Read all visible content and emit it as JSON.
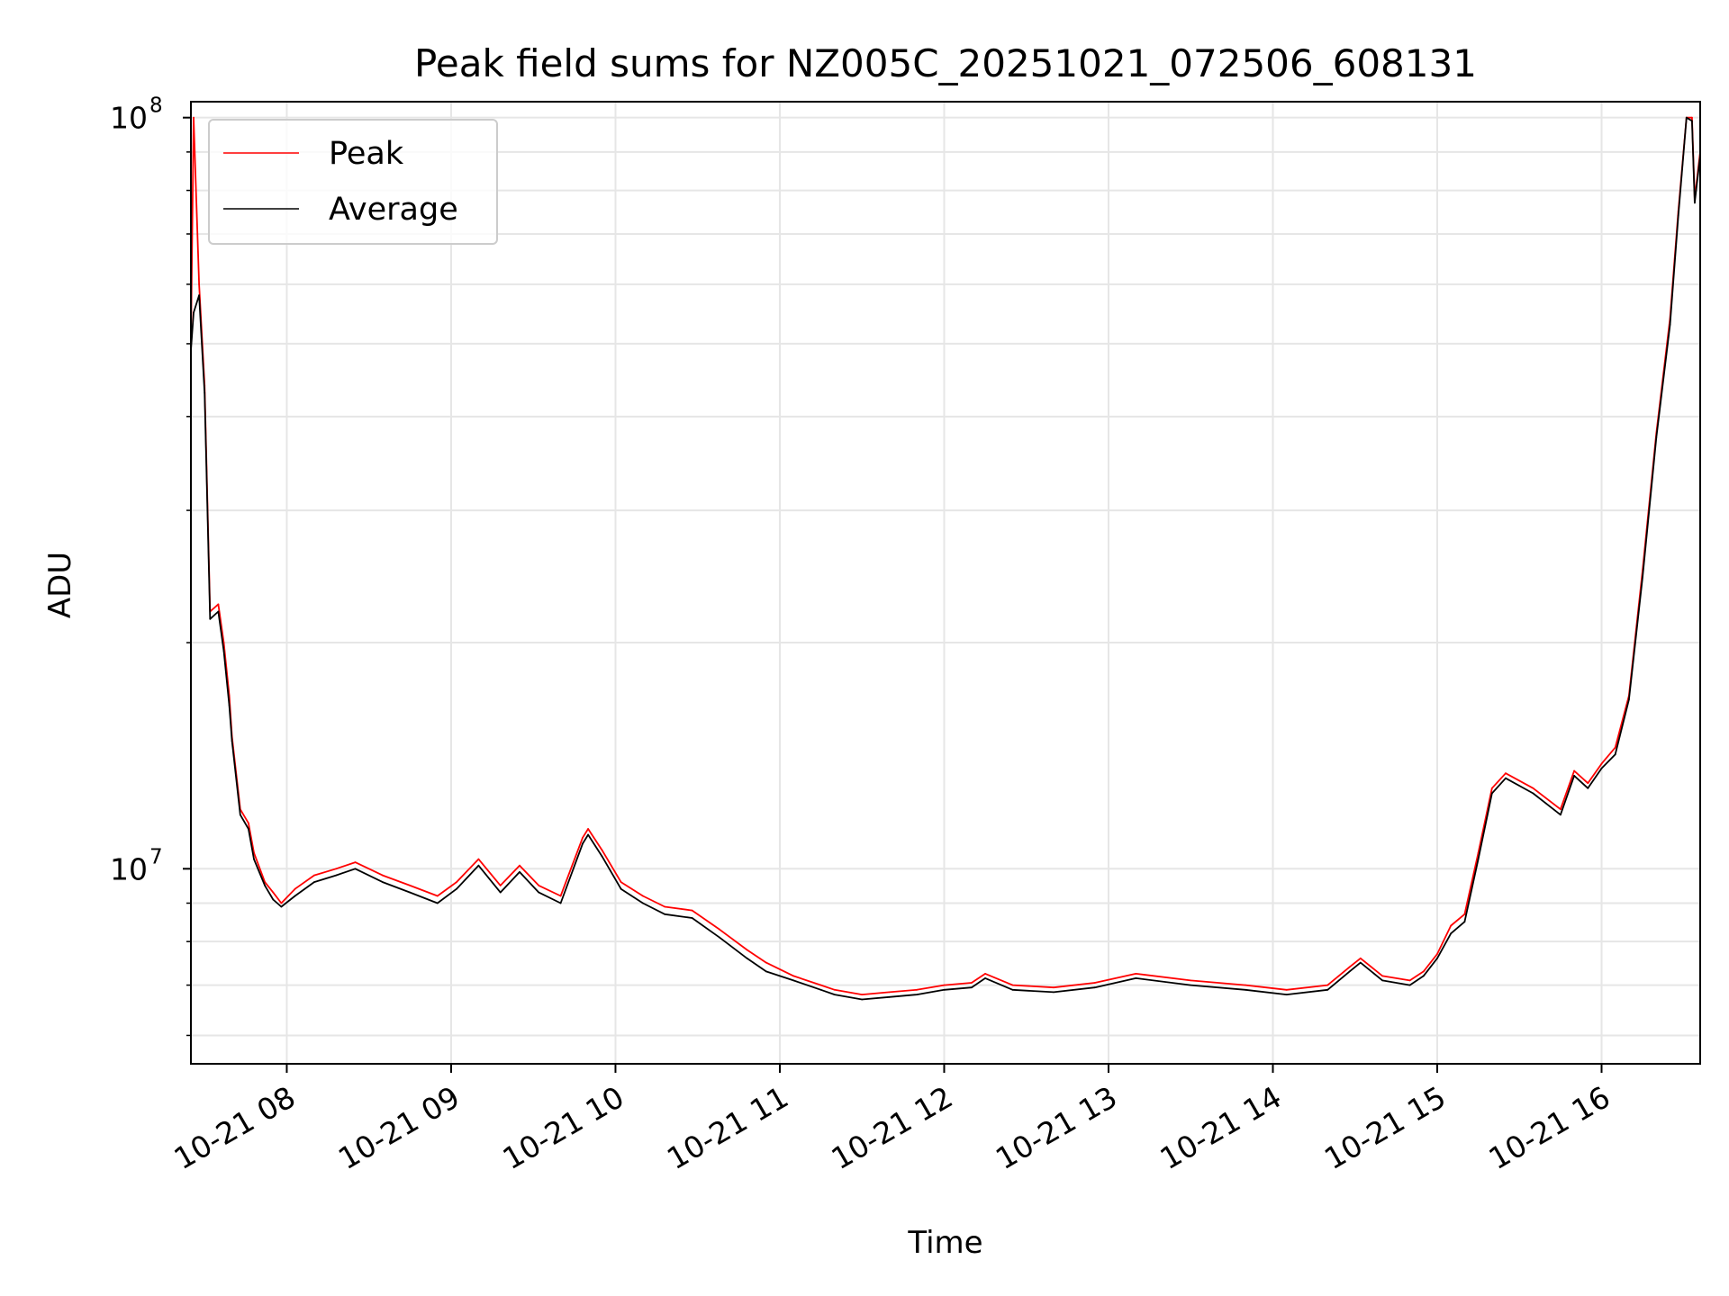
{
  "chart_data": {
    "type": "line",
    "title": "Peak field sums for NZ005C_20251021_072506_608131",
    "xlabel": "Time",
    "ylabel": "ADU",
    "y_scale": "log",
    "grid": true,
    "legend_placement": "top-left",
    "xlim": [
      "2025-10-21 07:25",
      "2025-10-21 16:36"
    ],
    "ylim": [
      5500000,
      105000000
    ],
    "x_ticks": [
      "10-21 08",
      "10-21 09",
      "10-21 10",
      "10-21 11",
      "10-21 12",
      "10-21 13",
      "10-21 14",
      "10-21 15",
      "10-21 16"
    ],
    "x_tick_times": [
      "2025-10-21 08:00",
      "2025-10-21 09:00",
      "2025-10-21 10:00",
      "2025-10-21 11:00",
      "2025-10-21 12:00",
      "2025-10-21 13:00",
      "2025-10-21 14:00",
      "2025-10-21 15:00",
      "2025-10-21 16:00"
    ],
    "y_major_ticks": [
      {
        "value": 10000000,
        "base": "10",
        "exp": "7"
      },
      {
        "value": 100000000,
        "base": "10",
        "exp": "8"
      }
    ],
    "y_minor_ticks": [
      6000000,
      7000000,
      8000000,
      9000000,
      20000000,
      30000000,
      40000000,
      50000000,
      60000000,
      70000000,
      80000000,
      90000000
    ],
    "series": [
      {
        "name": "Peak",
        "color": "#ff0000",
        "x": [
          "2025-10-21 07:25",
          "2025-10-21 07:26",
          "2025-10-21 07:28",
          "2025-10-21 07:30",
          "2025-10-21 07:32",
          "2025-10-21 07:35",
          "2025-10-21 07:37",
          "2025-10-21 07:39",
          "2025-10-21 07:40",
          "2025-10-21 07:43",
          "2025-10-21 07:46",
          "2025-10-21 07:48",
          "2025-10-21 07:52",
          "2025-10-21 07:55",
          "2025-10-21 07:58",
          "2025-10-21 08:03",
          "2025-10-21 08:10",
          "2025-10-21 08:18",
          "2025-10-21 08:25",
          "2025-10-21 08:35",
          "2025-10-21 08:45",
          "2025-10-21 08:55",
          "2025-10-21 09:02",
          "2025-10-21 09:10",
          "2025-10-21 09:18",
          "2025-10-21 09:25",
          "2025-10-21 09:32",
          "2025-10-21 09:40",
          "2025-10-21 09:48",
          "2025-10-21 09:50",
          "2025-10-21 09:55",
          "2025-10-21 10:02",
          "2025-10-21 10:10",
          "2025-10-21 10:18",
          "2025-10-21 10:28",
          "2025-10-21 10:38",
          "2025-10-21 10:48",
          "2025-10-21 10:55",
          "2025-10-21 11:05",
          "2025-10-21 11:15",
          "2025-10-21 11:20",
          "2025-10-21 11:30",
          "2025-10-21 11:40",
          "2025-10-21 11:50",
          "2025-10-21 12:00",
          "2025-10-21 12:10",
          "2025-10-21 12:15",
          "2025-10-21 12:25",
          "2025-10-21 12:40",
          "2025-10-21 12:55",
          "2025-10-21 13:10",
          "2025-10-21 13:30",
          "2025-10-21 13:50",
          "2025-10-21 14:05",
          "2025-10-21 14:20",
          "2025-10-21 14:28",
          "2025-10-21 14:32",
          "2025-10-21 14:40",
          "2025-10-21 14:50",
          "2025-10-21 14:55",
          "2025-10-21 15:00",
          "2025-10-21 15:05",
          "2025-10-21 15:10",
          "2025-10-21 15:15",
          "2025-10-21 15:20",
          "2025-10-21 15:25",
          "2025-10-21 15:35",
          "2025-10-21 15:45",
          "2025-10-21 15:50",
          "2025-10-21 15:55",
          "2025-10-21 16:00",
          "2025-10-21 16:05",
          "2025-10-21 16:10",
          "2025-10-21 16:15",
          "2025-10-21 16:20",
          "2025-10-21 16:25",
          "2025-10-21 16:28",
          "2025-10-21 16:31",
          "2025-10-21 16:33",
          "2025-10-21 16:34",
          "2025-10-21 16:36"
        ],
        "y": [
          50000000,
          100000000,
          60000000,
          44000000,
          22000000,
          22500000,
          20000000,
          17000000,
          15000000,
          12000000,
          11500000,
          10500000,
          9600000,
          9300000,
          9000000,
          9400000,
          9800000,
          10000000,
          10200000,
          9800000,
          9500000,
          9200000,
          9600000,
          10300000,
          9500000,
          10100000,
          9500000,
          9200000,
          11000000,
          11300000,
          10600000,
          9600000,
          9200000,
          8900000,
          8800000,
          8300000,
          7800000,
          7500000,
          7200000,
          7000000,
          6900000,
          6800000,
          6850000,
          6900000,
          7000000,
          7050000,
          7250000,
          7000000,
          6950000,
          7050000,
          7250000,
          7100000,
          7000000,
          6900000,
          7000000,
          7400000,
          7600000,
          7200000,
          7100000,
          7300000,
          7700000,
          8400000,
          8700000,
          10500000,
          12800000,
          13400000,
          12800000,
          12000000,
          13500000,
          13000000,
          13800000,
          14500000,
          17000000,
          25000000,
          38000000,
          54000000,
          75000000,
          100000000,
          100000000,
          78000000,
          90000000
        ]
      },
      {
        "name": "Average",
        "color": "#000000",
        "x": [
          "2025-10-21 07:25",
          "2025-10-21 07:26",
          "2025-10-21 07:28",
          "2025-10-21 07:30",
          "2025-10-21 07:32",
          "2025-10-21 07:35",
          "2025-10-21 07:37",
          "2025-10-21 07:39",
          "2025-10-21 07:40",
          "2025-10-21 07:43",
          "2025-10-21 07:46",
          "2025-10-21 07:48",
          "2025-10-21 07:52",
          "2025-10-21 07:55",
          "2025-10-21 07:58",
          "2025-10-21 08:03",
          "2025-10-21 08:10",
          "2025-10-21 08:18",
          "2025-10-21 08:25",
          "2025-10-21 08:35",
          "2025-10-21 08:45",
          "2025-10-21 08:55",
          "2025-10-21 09:02",
          "2025-10-21 09:10",
          "2025-10-21 09:18",
          "2025-10-21 09:25",
          "2025-10-21 09:32",
          "2025-10-21 09:40",
          "2025-10-21 09:48",
          "2025-10-21 09:50",
          "2025-10-21 09:55",
          "2025-10-21 10:02",
          "2025-10-21 10:10",
          "2025-10-21 10:18",
          "2025-10-21 10:28",
          "2025-10-21 10:38",
          "2025-10-21 10:48",
          "2025-10-21 10:55",
          "2025-10-21 11:05",
          "2025-10-21 11:15",
          "2025-10-21 11:20",
          "2025-10-21 11:30",
          "2025-10-21 11:40",
          "2025-10-21 11:50",
          "2025-10-21 12:00",
          "2025-10-21 12:10",
          "2025-10-21 12:15",
          "2025-10-21 12:25",
          "2025-10-21 12:40",
          "2025-10-21 12:55",
          "2025-10-21 13:10",
          "2025-10-21 13:30",
          "2025-10-21 13:50",
          "2025-10-21 14:05",
          "2025-10-21 14:20",
          "2025-10-21 14:28",
          "2025-10-21 14:32",
          "2025-10-21 14:40",
          "2025-10-21 14:50",
          "2025-10-21 14:55",
          "2025-10-21 15:00",
          "2025-10-21 15:05",
          "2025-10-21 15:10",
          "2025-10-21 15:15",
          "2025-10-21 15:20",
          "2025-10-21 15:25",
          "2025-10-21 15:35",
          "2025-10-21 15:45",
          "2025-10-21 15:50",
          "2025-10-21 15:55",
          "2025-10-21 16:00",
          "2025-10-21 16:05",
          "2025-10-21 16:10",
          "2025-10-21 16:15",
          "2025-10-21 16:20",
          "2025-10-21 16:25",
          "2025-10-21 16:28",
          "2025-10-21 16:31",
          "2025-10-21 16:33",
          "2025-10-21 16:34",
          "2025-10-21 16:36"
        ],
        "y": [
          49000000,
          55000000,
          58000000,
          43000000,
          21500000,
          22000000,
          19500000,
          16500000,
          14800000,
          11800000,
          11300000,
          10300000,
          9500000,
          9100000,
          8900000,
          9200000,
          9600000,
          9800000,
          10000000,
          9600000,
          9300000,
          9000000,
          9400000,
          10100000,
          9300000,
          9900000,
          9300000,
          9000000,
          10800000,
          11100000,
          10400000,
          9400000,
          9000000,
          8700000,
          8600000,
          8100000,
          7600000,
          7300000,
          7100000,
          6900000,
          6800000,
          6700000,
          6750000,
          6800000,
          6900000,
          6950000,
          7150000,
          6900000,
          6850000,
          6950000,
          7150000,
          7000000,
          6900000,
          6800000,
          6900000,
          7300000,
          7500000,
          7100000,
          7000000,
          7200000,
          7600000,
          8200000,
          8500000,
          10300000,
          12600000,
          13200000,
          12600000,
          11800000,
          13300000,
          12800000,
          13600000,
          14200000,
          16800000,
          24500000,
          37500000,
          53000000,
          74000000,
          100000000,
          99000000,
          77000000,
          89000000
        ]
      }
    ]
  }
}
